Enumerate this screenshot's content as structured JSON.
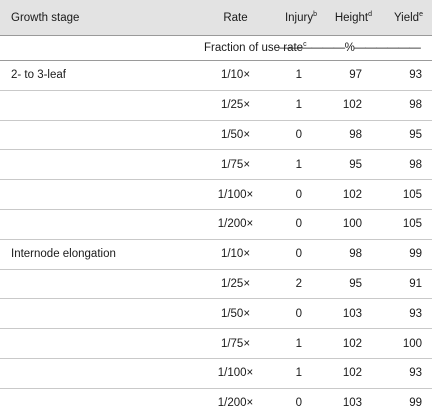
{
  "table": {
    "headers": {
      "growth_stage": "Growth stage",
      "rate": "Rate",
      "injury": "Injury",
      "injury_sup": "b",
      "height": "Height",
      "height_sup": "d",
      "yield": "Yield",
      "yield_sup": "e"
    },
    "units": {
      "rate_label": "Fraction of use rate",
      "rate_sup": "c",
      "percent": "——————%——————"
    },
    "rows": [
      {
        "stage": "2- to 3-leaf",
        "rate": "1/10×",
        "injury": "1",
        "height": "97",
        "yield": "93"
      },
      {
        "stage": "",
        "rate": "1/25×",
        "injury": "1",
        "height": "102",
        "yield": "98"
      },
      {
        "stage": "",
        "rate": "1/50×",
        "injury": "0",
        "height": "98",
        "yield": "95"
      },
      {
        "stage": "",
        "rate": "1/75×",
        "injury": "1",
        "height": "95",
        "yield": "98"
      },
      {
        "stage": "",
        "rate": "1/100×",
        "injury": "0",
        "height": "102",
        "yield": "105"
      },
      {
        "stage": "",
        "rate": "1/200×",
        "injury": "0",
        "height": "100",
        "yield": "105"
      },
      {
        "stage": "Internode elongation",
        "rate": "1/10×",
        "injury": "0",
        "height": "98",
        "yield": "99"
      },
      {
        "stage": "",
        "rate": "1/25×",
        "injury": "2",
        "height": "95",
        "yield": "91"
      },
      {
        "stage": "",
        "rate": "1/50×",
        "injury": "0",
        "height": "103",
        "yield": "93"
      },
      {
        "stage": "",
        "rate": "1/75×",
        "injury": "1",
        "height": "102",
        "yield": "100"
      },
      {
        "stage": "",
        "rate": "1/100×",
        "injury": "1",
        "height": "102",
        "yield": "93"
      },
      {
        "stage": "",
        "rate": "1/200×",
        "injury": "0",
        "height": "103",
        "yield": "99"
      }
    ]
  }
}
